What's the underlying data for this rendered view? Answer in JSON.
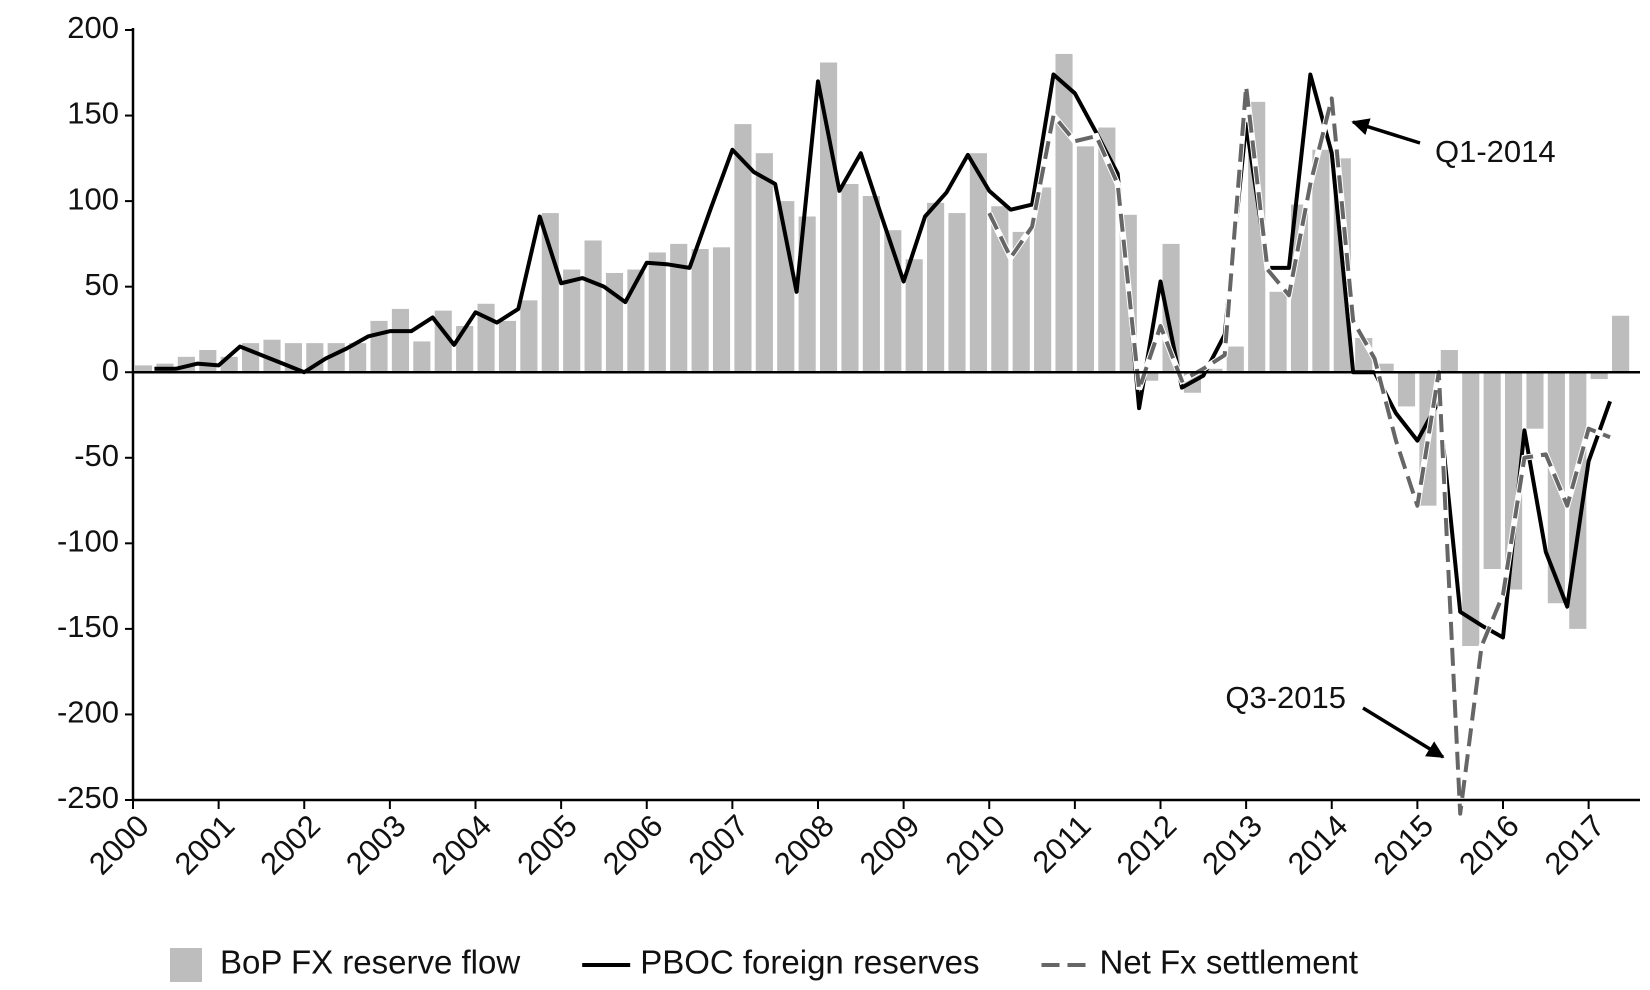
{
  "chart_data": {
    "type": "bar-line",
    "x": [
      2000,
      2000.25,
      2000.5,
      2000.75,
      2001,
      2001.25,
      2001.5,
      2001.75,
      2002,
      2002.25,
      2002.5,
      2002.75,
      2003,
      2003.25,
      2003.5,
      2003.75,
      2004,
      2004.25,
      2004.5,
      2004.75,
      2005,
      2005.25,
      2005.5,
      2005.75,
      2006,
      2006.25,
      2006.5,
      2006.75,
      2007,
      2007.25,
      2007.5,
      2007.75,
      2008,
      2008.25,
      2008.5,
      2008.75,
      2009,
      2009.25,
      2009.5,
      2009.75,
      2010,
      2010.25,
      2010.5,
      2010.75,
      2011,
      2011.25,
      2011.5,
      2011.75,
      2012,
      2012.25,
      2012.5,
      2012.75,
      2013,
      2013.25,
      2013.5,
      2013.75,
      2014,
      2014.25,
      2014.5,
      2014.75,
      2015,
      2015.25,
      2015.5,
      2015.75,
      2016,
      2016.25,
      2016.5,
      2016.75,
      2017,
      2017.25
    ],
    "series": [
      {
        "name": "BoP FX reserve flow",
        "kind": "bar",
        "color": "#bdbdbd",
        "values": [
          4,
          5,
          9,
          13,
          9,
          17,
          19,
          17,
          17,
          17,
          17,
          30,
          37,
          18,
          36,
          27,
          40,
          30,
          42,
          93,
          60,
          77,
          58,
          60,
          70,
          75,
          72,
          73,
          145,
          128,
          100,
          91,
          181,
          110,
          103,
          83,
          66,
          99,
          93,
          128,
          97,
          82,
          108,
          186,
          132,
          143,
          92,
          -5,
          75,
          -12,
          2,
          15,
          158,
          47,
          98,
          130,
          125,
          20,
          5,
          -20,
          -78,
          13,
          -160,
          -115,
          -127,
          -33,
          -135,
          -150,
          -4,
          33
        ]
      },
      {
        "name": "PBOC foreign reserves",
        "kind": "line",
        "color": "#000000",
        "dash": false,
        "values": [
          null,
          2,
          2,
          5,
          4,
          15,
          10,
          5,
          0,
          8,
          14,
          21,
          24,
          24,
          32,
          16,
          35,
          29,
          37,
          91,
          52,
          55,
          50,
          41,
          64,
          63,
          61,
          96,
          130,
          117,
          110,
          47,
          170,
          106,
          128,
          90,
          53,
          91,
          105,
          127,
          106,
          95,
          98,
          174,
          163,
          140,
          116,
          -21,
          53,
          -9,
          -2,
          22,
          145,
          61,
          61,
          174,
          128,
          0,
          0,
          -24,
          -40,
          -17,
          -140,
          -148,
          -155,
          -34,
          -105,
          -137,
          -52,
          -17
        ]
      },
      {
        "name": "Net Fx settlement",
        "kind": "line",
        "color": "#666666",
        "dash": true,
        "values": [
          null,
          null,
          null,
          null,
          null,
          null,
          null,
          null,
          null,
          null,
          null,
          null,
          null,
          null,
          null,
          null,
          null,
          null,
          null,
          null,
          null,
          null,
          null,
          null,
          null,
          null,
          null,
          null,
          null,
          null,
          null,
          null,
          null,
          null,
          null,
          null,
          null,
          null,
          null,
          null,
          93,
          67,
          85,
          150,
          135,
          138,
          110,
          -10,
          27,
          -5,
          2,
          10,
          167,
          60,
          45,
          110,
          160,
          30,
          8,
          -40,
          -78,
          0,
          -258,
          -160,
          -130,
          -50,
          -48,
          -78,
          -33,
          -38
        ]
      }
    ],
    "xlim": [
      2000,
      2017.6
    ],
    "xticks": [
      2000,
      2001,
      2002,
      2003,
      2004,
      2005,
      2006,
      2007,
      2008,
      2009,
      2010,
      2011,
      2012,
      2013,
      2014,
      2015,
      2016,
      2017
    ],
    "ylim": [
      -250,
      200
    ],
    "yticks": [
      -250,
      -200,
      -150,
      -100,
      -50,
      0,
      50,
      100,
      150,
      200
    ],
    "annotations": [
      "Q1-2014",
      "Q3-2015"
    ]
  }
}
